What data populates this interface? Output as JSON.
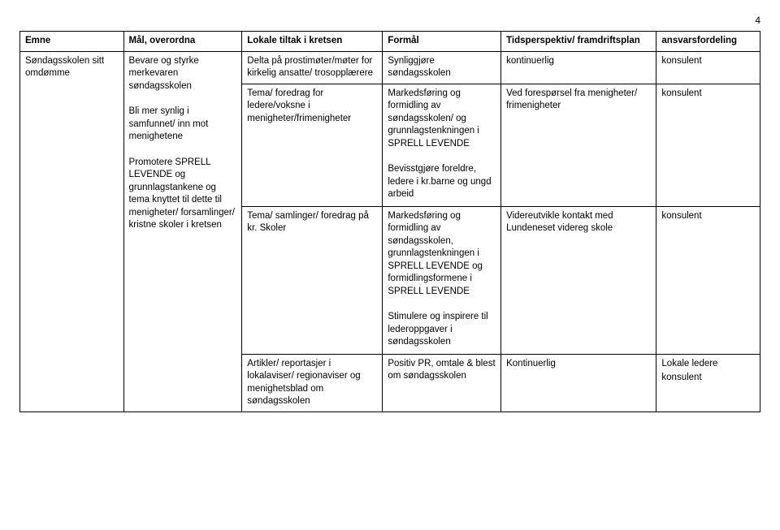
{
  "page_number": "4",
  "headers": {
    "emne": "Emne",
    "maal": "Mål, overordna",
    "lokale": "Lokale tiltak i kretsen",
    "formal": "Formål",
    "tids": "Tidsperspektiv/ framdriftsplan",
    "ansvar": "ansvarsfordeling"
  },
  "r1": {
    "emne": "Søndagsskolen sitt omdømme",
    "maal1": "Bevare og styrke merkevaren søndagsskolen",
    "maal2": "Bli mer synlig i samfunnet/ inn mot menighetene",
    "maal3": "Promotere SPRELL LEVENDE og grunnlagstankene og tema knyttet til dette til menigheter/ forsamlinger/ kristne skoler i kretsen",
    "lokale": "Delta på prostimøter/møter for kirkelig ansatte/ trosopplærere",
    "formal": "Synliggjøre søndagsskolen",
    "tids": "kontinuerlig",
    "ansvar": "konsulent"
  },
  "r2": {
    "lokale": "Tema/ foredrag for ledere/voksne i menigheter/frimenigheter",
    "formal1": "Markedsføring og formidling av søndagsskolen/ og grunnlagstenkningen i SPRELL LEVENDE",
    "formal2": "Bevisstgjøre foreldre, ledere i kr.barne og ungd arbeid",
    "tids": "Ved forespørsel fra menigheter/ frimenigheter",
    "ansvar": "konsulent"
  },
  "r3": {
    "lokale": "Tema/ samlinger/ foredrag på kr. Skoler",
    "formal1": "Markedsføring og formidling av søndagsskolen, grunnlagstenkningen i SPRELL LEVENDE og formidlingsformene i SPRELL LEVENDE",
    "formal2": "Stimulere og inspirere til lederoppgaver i søndagsskolen",
    "tids": "Videreutvikle kontakt med Lundeneset videreg skole",
    "ansvar": "konsulent"
  },
  "r4": {
    "lokale": "Artikler/ reportasjer i lokalaviser/ regionaviser og menighetsblad om søndagsskolen",
    "formal": "Positiv PR, omtale & blest om søndagsskolen",
    "tids": "Kontinuerlig",
    "ansvar1": "Lokale ledere",
    "ansvar2": "konsulent"
  }
}
